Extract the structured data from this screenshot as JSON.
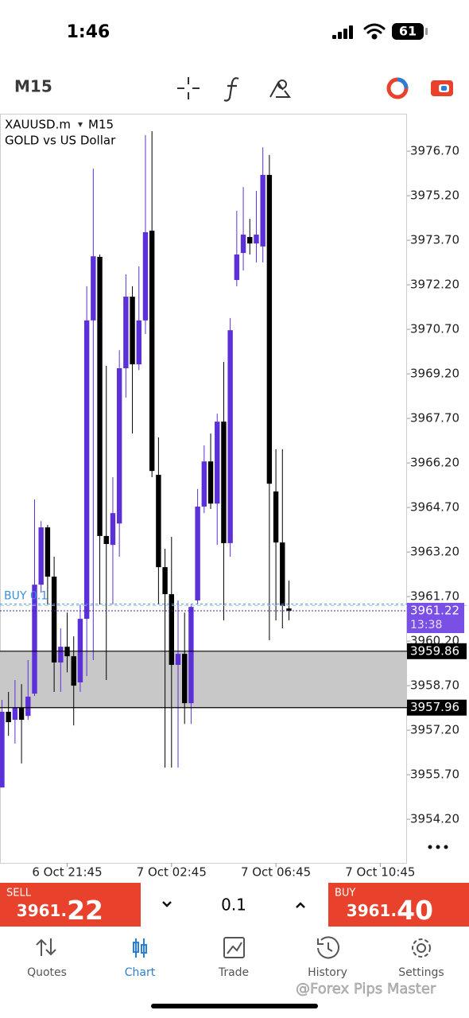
{
  "status_bar": {
    "time": "1:46",
    "battery": "61"
  },
  "toolbar": {
    "timeframe": "M15"
  },
  "chart_data": {
    "type": "candlestick",
    "symbol": "XAUUSD.m",
    "timeframe": "M15",
    "description": "GOLD vs US Dollar",
    "open": [
      3955.27,
      3957.82,
      3957.55,
      3957.95,
      3957.68,
      3958.43,
      3962.1,
      3964.03,
      3962.37,
      3959.48,
      3960.01,
      3959.69,
      3958.81,
      3960.95,
      3971.0,
      3973.14,
      3963.74,
      3963.44,
      3964.16,
      3969.39,
      3971.8,
      3969.52,
      3971.0,
      3974.02,
      3965.8,
      3962.69,
      3961.78,
      3959.4,
      3959.77,
      3958.11,
      3961.57,
      3964.73,
      3966.25,
      3964.83,
      3967.59,
      3963.5,
      3972.36,
      3973.27,
      3973.81,
      3973.59,
      3973.49,
      3975.9,
      3965.24,
      3963.52,
      3961.3
    ],
    "high": [
      3958.22,
      3958.49,
      3958.89,
      3958.75,
      3959.56,
      3964.97,
      3964.24,
      3964.11,
      3963.04,
      3960.63,
      3961.16,
      3960.36,
      3961.43,
      3972.15,
      3976.11,
      3973.22,
      3969.47,
      3965.72,
      3970.0,
      3972.55,
      3972.15,
      3972.82,
      3977.24,
      3977.37,
      3967.06,
      3963.31,
      3963.71,
      3961.57,
      3961.16,
      3961.43,
      3965.32,
      3966.79,
      3967.19,
      3967.86,
      3969.6,
      3971.08,
      3974.69,
      3975.49,
      3974.42,
      3975.36,
      3976.83,
      3976.57,
      3966.66,
      3966.66,
      3962.24
    ],
    "low": [
      3955.27,
      3957.01,
      3956.75,
      3956.08,
      3957.55,
      3958.35,
      3961.83,
      3961.43,
      3958.49,
      3958.49,
      3959.15,
      3957.36,
      3958.49,
      3959.02,
      3959.56,
      3961.43,
      3958.89,
      3961.43,
      3963.04,
      3968.4,
      3967.19,
      3969.33,
      3970.54,
      3965.72,
      3961.43,
      3955.94,
      3955.94,
      3955.94,
      3957.41,
      3957.41,
      3961.43,
      3964.51,
      3964.65,
      3963.44,
      3960.9,
      3963.04,
      3972.15,
      3972.68,
      3973.22,
      3972.95,
      3972.95,
      3960.23,
      3960.9,
      3960.63,
      3960.9
    ],
    "close": [
      3957.82,
      3957.47,
      3957.95,
      3957.55,
      3958.33,
      3962.1,
      3964.03,
      3962.37,
      3959.48,
      3960.01,
      3959.69,
      3958.7,
      3960.95,
      3971.0,
      3973.16,
      3963.74,
      3963.47,
      3964.51,
      3969.39,
      3971.8,
      3969.52,
      3971.0,
      3973.97,
      3965.93,
      3962.69,
      3961.78,
      3959.4,
      3959.77,
      3958.11,
      3961.35,
      3964.73,
      3966.25,
      3964.83,
      3967.59,
      3963.5,
      3970.67,
      3973.22,
      3973.89,
      3973.59,
      3973.89,
      3975.9,
      3965.5,
      3963.52,
      3961.38,
      3961.22
    ],
    "up_color": "#5b30d9",
    "down_color": "#000000",
    "grid": false,
    "ylim": [
      3952.73,
      3977.96
    ],
    "yticks": [
      {
        "value": 3976.7,
        "label": "3976.70"
      },
      {
        "value": 3975.2,
        "label": "3975.20"
      },
      {
        "value": 3973.7,
        "label": "3973.70"
      },
      {
        "value": 3972.2,
        "label": "3972.20"
      },
      {
        "value": 3970.7,
        "label": "3970.70"
      },
      {
        "value": 3969.2,
        "label": "3969.20"
      },
      {
        "value": 3967.7,
        "label": "3967.70"
      },
      {
        "value": 3966.2,
        "label": "3966.20"
      },
      {
        "value": 3964.7,
        "label": "3964.70"
      },
      {
        "value": 3963.2,
        "label": "3963.20"
      },
      {
        "value": 3961.7,
        "label": "3961.70"
      },
      {
        "value": 3960.2,
        "label": "3960.20"
      },
      {
        "value": 3958.7,
        "label": "3958.70"
      },
      {
        "value": 3957.2,
        "label": "3957.20"
      },
      {
        "value": 3955.7,
        "label": "3955.70"
      },
      {
        "value": 3954.2,
        "label": "3954.20"
      }
    ],
    "xlim": [
      -0.3,
      62.1
    ],
    "xticks": [
      {
        "value": 10,
        "label": "6 Oct 21:45"
      },
      {
        "value": 26,
        "label": "7 Oct 02:45"
      },
      {
        "value": 42,
        "label": "7 Oct 06:45"
      },
      {
        "value": 58,
        "label": "7 Oct 10:45"
      }
    ],
    "zone": {
      "high": {
        "value": 3959.86,
        "label": "3959.86"
      },
      "low": {
        "value": 3957.96,
        "label": "3957.96"
      },
      "color": "#c8c8c8"
    },
    "order": {
      "label": "BUY 0.1",
      "value": 3961.45,
      "color": "#3b8fd9"
    },
    "ask": 3961.4,
    "bid": {
      "value": 3961.22,
      "label": "3961.22",
      "color": "#7a4fe6"
    },
    "countdown": "13:38"
  },
  "trade_panel": {
    "sell": {
      "label": "SELL",
      "price_prefix": "3961.",
      "price_suffix": "22"
    },
    "volume": "0.1",
    "buy": {
      "label": "BUY",
      "price_prefix": "3961.",
      "price_suffix": "40"
    }
  },
  "nav": {
    "items": [
      "Quotes",
      "Chart",
      "Trade",
      "History",
      "Settings"
    ],
    "active": 1
  },
  "watermark": "@Forex Pips Master"
}
